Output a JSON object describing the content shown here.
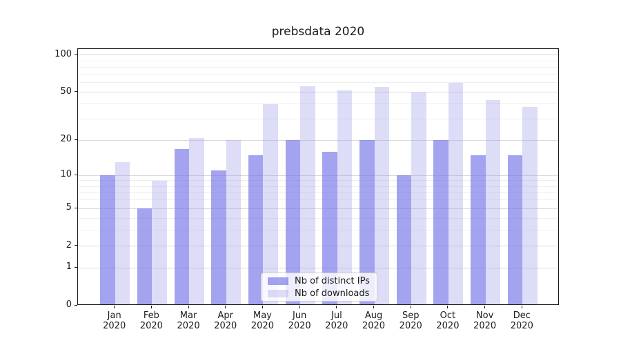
{
  "chart_data": {
    "type": "bar",
    "title": "prebsdata 2020",
    "categories": [
      "Jan",
      "Feb",
      "Mar",
      "Apr",
      "May",
      "Jun",
      "Jul",
      "Aug",
      "Sep",
      "Oct",
      "Nov",
      "Dec"
    ],
    "category_year": "2020",
    "series": [
      {
        "name": "Nb of distinct IPs",
        "color": "rgba(113, 113, 231, 0.65)",
        "values": [
          10,
          5,
          17,
          11,
          15,
          20,
          16,
          20,
          10,
          20,
          15,
          15
        ]
      },
      {
        "name": "Nb of downloads",
        "color": "rgba(157, 157, 236, 0.35)",
        "values": [
          13,
          9,
          21,
          20,
          40,
          56,
          52,
          55,
          50,
          60,
          43,
          38
        ]
      }
    ],
    "xlabel": "",
    "ylabel": "",
    "yscale": "log1p",
    "ylim": [
      0,
      112
    ],
    "y_major_ticks": [
      0,
      1,
      2,
      5,
      10,
      20,
      50,
      100
    ],
    "y_minor_gridlines": [
      3,
      4,
      6,
      7,
      8,
      9,
      30,
      40,
      60,
      70,
      80,
      90
    ],
    "grid": true,
    "legend_position": "lower center",
    "colors": {
      "grid_major": "#d9d9d9",
      "grid_minor": "#eeeeee",
      "axis": "#1a1a1a",
      "background": "#ffffff"
    }
  }
}
